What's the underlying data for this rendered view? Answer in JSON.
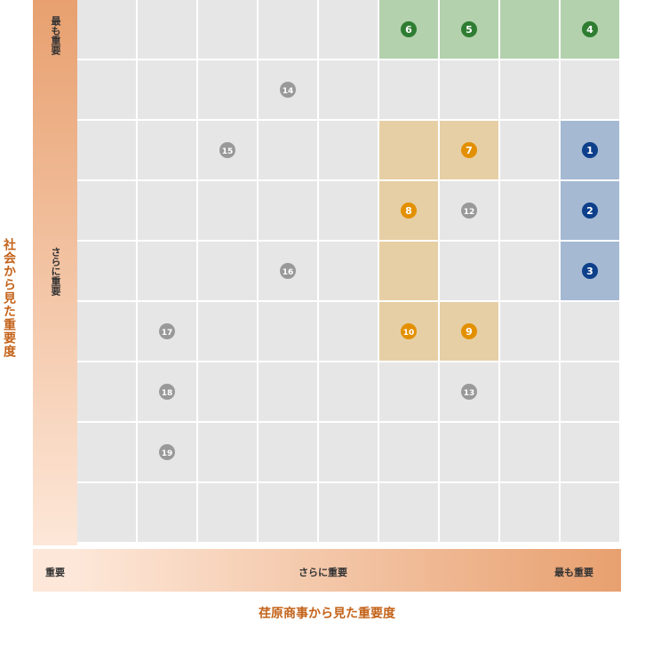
{
  "chart_data": {
    "type": "heatmap",
    "title": "",
    "xlabel": "荏原商事から見た重要度",
    "ylabel": "社会から見た重要度",
    "x_scale_labels": [
      "重要",
      "さらに重要",
      "最も重要"
    ],
    "y_scale_labels": [
      "最も重要",
      "さらに重要"
    ],
    "columns": 9,
    "rows": 9,
    "highlight_groups": [
      {
        "color": "#b3d1ad",
        "cells": [
          [
            5,
            0
          ],
          [
            6,
            0
          ],
          [
            7,
            0
          ],
          [
            8,
            0
          ]
        ]
      },
      {
        "color": "#e6cfa5",
        "cells": [
          [
            5,
            2
          ],
          [
            6,
            2
          ],
          [
            5,
            3
          ],
          [
            5,
            4
          ],
          [
            5,
            5
          ],
          [
            6,
            5
          ]
        ]
      },
      {
        "color": "#a5b9d2",
        "cells": [
          [
            8,
            2
          ],
          [
            8,
            3
          ],
          [
            8,
            4
          ]
        ]
      }
    ],
    "items": [
      {
        "label": "1",
        "col": 8,
        "row": 2,
        "color": "#0d3f8a"
      },
      {
        "label": "2",
        "col": 8,
        "row": 3,
        "color": "#0d3f8a"
      },
      {
        "label": "3",
        "col": 8,
        "row": 4,
        "color": "#0d3f8a"
      },
      {
        "label": "4",
        "col": 8,
        "row": 0,
        "color": "#2e7d32"
      },
      {
        "label": "5",
        "col": 6,
        "row": 0,
        "color": "#2e7d32"
      },
      {
        "label": "6",
        "col": 5,
        "row": 0,
        "color": "#2e7d32"
      },
      {
        "label": "7",
        "col": 6,
        "row": 2,
        "color": "#e39000"
      },
      {
        "label": "8",
        "col": 5,
        "row": 3,
        "color": "#e39000"
      },
      {
        "label": "9",
        "col": 6,
        "row": 5,
        "color": "#e39000"
      },
      {
        "label": "10",
        "col": 5,
        "row": 5,
        "color": "#e39000"
      },
      {
        "label": "12",
        "col": 6,
        "row": 3,
        "color": "#999999"
      },
      {
        "label": "13",
        "col": 6,
        "row": 6,
        "color": "#999999"
      },
      {
        "label": "14",
        "col": 3,
        "row": 1,
        "color": "#999999"
      },
      {
        "label": "15",
        "col": 2,
        "row": 2,
        "color": "#999999"
      },
      {
        "label": "16",
        "col": 3,
        "row": 4,
        "color": "#999999"
      },
      {
        "label": "17",
        "col": 1,
        "row": 5,
        "color": "#999999"
      },
      {
        "label": "18",
        "col": 1,
        "row": 6,
        "color": "#999999"
      },
      {
        "label": "19",
        "col": 1,
        "row": 7,
        "color": "#999999"
      }
    ],
    "colors": {
      "cell": "#e6e6e6",
      "accent": "#c4631a",
      "gradient_start": "#fde7d8",
      "gradient_end": "#e8a06f"
    }
  }
}
